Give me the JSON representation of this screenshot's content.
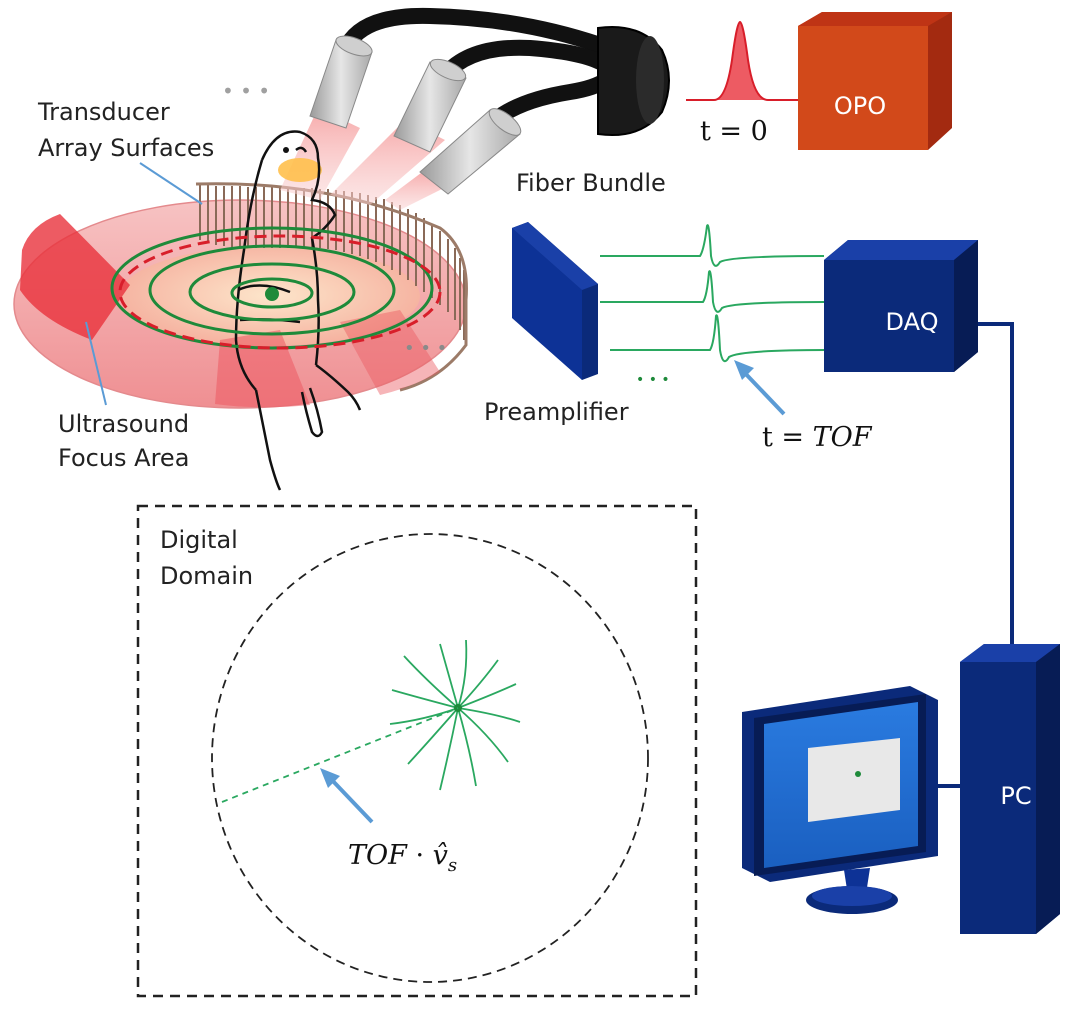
{
  "labels": {
    "transducer_line1": "Transducer",
    "transducer_line2": "Array Surfaces",
    "ultrasound_line1": "Ultrasound",
    "ultrasound_line2": "Focus Area",
    "fiber_bundle": "Fiber Bundle",
    "opo": "OPO",
    "t_zero": "t = 0",
    "preamplifier": "Preamplifier",
    "daq": "DAQ",
    "t_tof_prefix": "t = ",
    "t_tof_var": "TOF",
    "digital_line1": "Digital",
    "digital_line2": "Domain",
    "tof_vs_var": "TOF",
    "tof_vs_dot": " · ",
    "tof_vs_v": "v̂",
    "tof_vs_sub": "s",
    "pc": "PC",
    "ellipsis_top": "• • •",
    "ellipsis_ring": "• • •",
    "ellipsis_signals": "• • •"
  },
  "colors": {
    "navy": "#0b2a7a",
    "navy_dark": "#071c55",
    "opo_front": "#d2491a",
    "opo_top": "#b82f14",
    "opo_side": "#a32a10",
    "signal_green": "#2aa860",
    "ring_green": "#1e8a3a",
    "arrow_blue": "#5b9bd5",
    "laser_red": "#e8323c",
    "torus_pink": "#f4a7a9",
    "transducer_brown": "#9c7b68"
  }
}
